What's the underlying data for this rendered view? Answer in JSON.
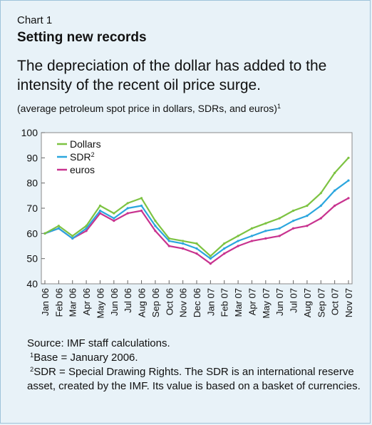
{
  "header": {
    "kicker": "Chart 1",
    "headline": "Setting new records",
    "subtitle": "The depreciation of the dollar has added to the intensity of the recent oil price surge.",
    "units": "(average petroleum spot price in dollars, SDRs, and euros)",
    "units_sup": "1"
  },
  "colors": {
    "background": "#e8f2f8",
    "plot_background": "#ffffff",
    "dollars": "#7dc342",
    "sdr": "#2ba6de",
    "euros": "#c8338f"
  },
  "chart_data": {
    "type": "line",
    "x": [
      "Jan 06",
      "Feb 06",
      "Mar 06",
      "Apr 06",
      "May 06",
      "Jun 06",
      "Jul 06",
      "Aug 06",
      "Sep 06",
      "Oct 06",
      "Nov 06",
      "Dec 06",
      "Jan 07",
      "Feb 07",
      "Mar 07",
      "Apr 07",
      "May 07",
      "Jun 07",
      "Jul 07",
      "Aug 07",
      "Sep 07",
      "Oct 07",
      "Nov 07"
    ],
    "ylim": [
      40,
      100
    ],
    "yticks": [
      40,
      50,
      60,
      70,
      80,
      90,
      100
    ],
    "legend_position": "top-left",
    "series": [
      {
        "name": "Dollars",
        "sup": "",
        "color": "#7dc342",
        "values": [
          60,
          63,
          59,
          63,
          71,
          68,
          72,
          74,
          65,
          58,
          57,
          56,
          51,
          56,
          59,
          62,
          64,
          66,
          69,
          71,
          76,
          84,
          90
        ]
      },
      {
        "name": "SDR",
        "sup": "2",
        "color": "#2ba6de",
        "values": [
          60,
          62,
          58,
          62,
          69,
          66,
          70,
          71,
          63,
          57,
          56,
          54,
          50,
          54,
          57,
          59,
          61,
          62,
          65,
          67,
          71,
          77,
          81
        ]
      },
      {
        "name": "euros",
        "sup": "",
        "color": "#c8338f",
        "values": [
          60,
          62,
          58,
          61,
          68,
          65,
          68,
          69,
          61,
          55,
          54,
          52,
          48,
          52,
          55,
          57,
          58,
          59,
          62,
          63,
          66,
          71,
          74
        ]
      }
    ]
  },
  "notes": {
    "source": "Source: IMF staff calculations.",
    "note1_sup": "1",
    "note1": "Base = January 2006.",
    "note2_sup": "2",
    "note2": "SDR = Special Drawing Rights. The SDR is an international reserve asset, created by the IMF. Its value is based on a basket of currencies."
  }
}
